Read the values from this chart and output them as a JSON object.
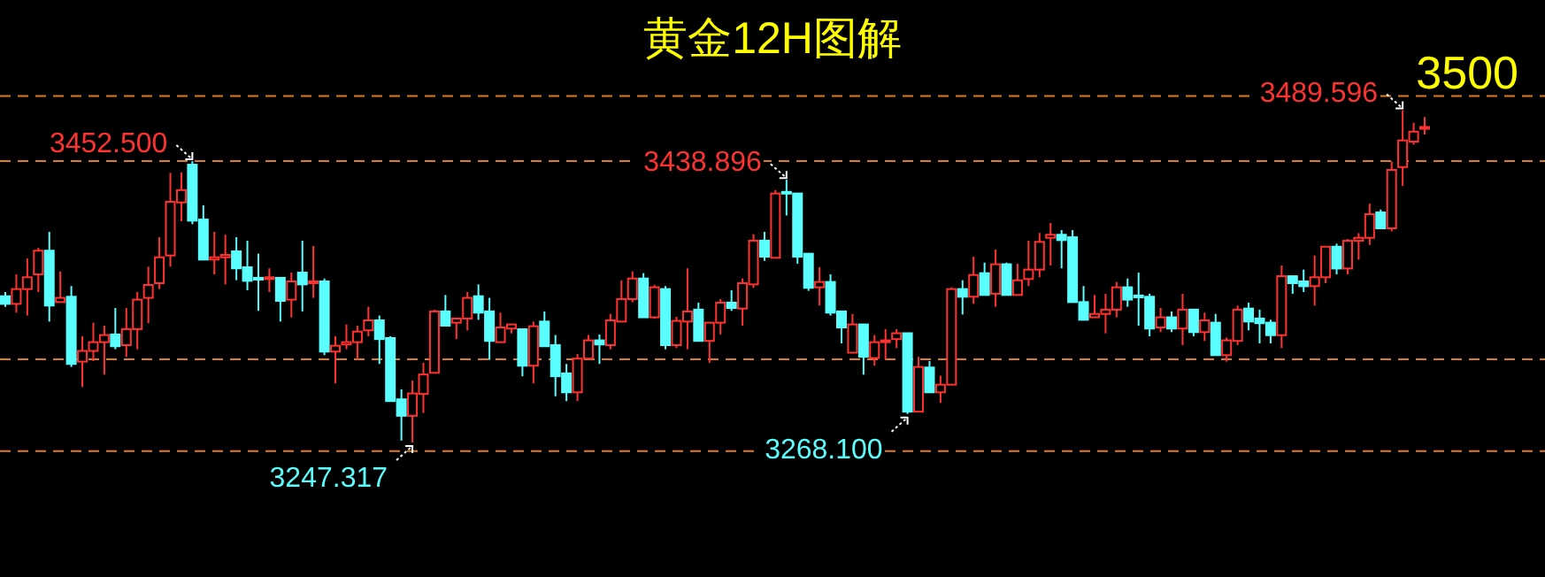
{
  "chart_data": {
    "type": "candlestick",
    "title": "黄金12H图解",
    "categories": [
      null,
      null,
      null,
      null,
      null,
      null,
      null,
      null,
      null,
      null,
      null,
      null,
      null,
      null,
      null,
      null,
      null,
      null,
      null,
      null,
      null,
      null,
      null,
      null,
      null,
      null,
      null,
      null,
      null,
      null,
      null,
      null,
      null,
      null,
      null,
      null,
      null,
      null,
      null,
      null,
      null,
      null,
      null,
      null,
      null,
      null,
      null,
      null,
      null,
      null,
      null,
      null,
      null,
      null,
      null,
      null,
      null,
      null,
      null,
      null,
      null,
      null,
      null,
      null,
      null,
      null,
      null,
      null,
      null,
      null,
      null,
      null,
      null,
      null,
      null,
      null,
      null,
      null,
      null,
      null,
      null,
      null,
      null,
      null,
      null,
      null,
      null,
      null,
      null,
      null,
      null,
      null,
      null,
      null,
      null,
      null,
      null,
      null,
      null,
      null,
      null,
      null,
      null,
      null,
      null,
      null,
      null,
      null,
      null,
      null,
      null,
      null,
      null,
      null,
      null,
      null,
      null,
      null,
      null,
      null,
      null,
      null,
      null,
      null,
      null,
      null,
      null,
      null,
      null,
      null
    ],
    "ohlc": [
      [
        3354.0,
        3357.0,
        3346.3,
        3348.4
      ],
      [
        3348.4,
        3369.9,
        3342.0,
        3359.2
      ],
      [
        3359.2,
        3381.6,
        3339.9,
        3367.8
      ],
      [
        3369.9,
        3389.3,
        3357.1,
        3387.2
      ],
      [
        3387.2,
        3400.9,
        3335.5,
        3347.2
      ],
      [
        3349.7,
        3372.1,
        3349.7,
        3352.8
      ],
      [
        3353.6,
        3361.4,
        3302.4,
        3304.6
      ],
      [
        3306.3,
        3324.8,
        3287.8,
        3314.1
      ],
      [
        3314.1,
        3334.7,
        3306.7,
        3320.5
      ],
      [
        3320.5,
        3332.5,
        3296.8,
        3325.7
      ],
      [
        3326.1,
        3345.4,
        3315.3,
        3317.5
      ],
      [
        3318.3,
        3345.4,
        3309.8,
        3330.0
      ],
      [
        3330.0,
        3357.1,
        3315.3,
        3351.5
      ],
      [
        3352.8,
        3375.5,
        3334.3,
        3362.2
      ],
      [
        3363.5,
        3397.0,
        3359.2,
        3382.4
      ],
      [
        3383.7,
        3443.9,
        3375.5,
        3422.8
      ],
      [
        3422.4,
        3444.3,
        3408.6,
        3431.4
      ],
      [
        3449.9,
        3452.5,
        3406.5,
        3409.1
      ],
      [
        3409.9,
        3420.3,
        3380.7,
        3380.7
      ],
      [
        3380.7,
        3400.9,
        3369.9,
        3382.4
      ],
      [
        3382.4,
        3398.8,
        3362.6,
        3384.1
      ],
      [
        3386.7,
        3397.0,
        3365.7,
        3374.3
      ],
      [
        3375.1,
        3394.5,
        3358.3,
        3365.2
      ],
      [
        3367.4,
        3385.0,
        3343.3,
        3366.5
      ],
      [
        3366.9,
        3374.3,
        3357.1,
        3367.8
      ],
      [
        3367.4,
        3367.4,
        3335.5,
        3350.6
      ],
      [
        3351.5,
        3371.2,
        3338.6,
        3364.8
      ],
      [
        3371.2,
        3394.5,
        3342.9,
        3362.6
      ],
      [
        3363.5,
        3390.6,
        3352.8,
        3364.8
      ],
      [
        3364.8,
        3366.9,
        3311.0,
        3313.6
      ],
      [
        3313.6,
        3324.8,
        3290.4,
        3317.9
      ],
      [
        3318.8,
        3333.4,
        3315.3,
        3320.5
      ],
      [
        3320.5,
        3332.5,
        3307.6,
        3328.2
      ],
      [
        3329.1,
        3346.3,
        3324.8,
        3336.4
      ],
      [
        3336.4,
        3339.9,
        3304.6,
        3322.7
      ],
      [
        3323.5,
        3324.8,
        3277.5,
        3277.5
      ],
      [
        3278.8,
        3286.1,
        3248.7,
        3266.8
      ],
      [
        3266.8,
        3292.5,
        3247.317,
        3283.1
      ],
      [
        3282.7,
        3305.4,
        3268.9,
        3296.9
      ],
      [
        3298.1,
        3344.2,
        3298.1,
        3342.9
      ],
      [
        3342.9,
        3354.9,
        3332.5,
        3332.5
      ],
      [
        3334.7,
        3337.7,
        3322.7,
        3337.7
      ],
      [
        3337.7,
        3357.1,
        3329.1,
        3352.8
      ],
      [
        3354.0,
        3362.6,
        3336.8,
        3342.0
      ],
      [
        3342.9,
        3352.8,
        3307.6,
        3321.4
      ],
      [
        3320.5,
        3342.0,
        3320.5,
        3331.2
      ],
      [
        3330.4,
        3333.4,
        3326.9,
        3333.4
      ],
      [
        3329.9,
        3329.9,
        3295.6,
        3303.3
      ],
      [
        3303.3,
        3335.5,
        3290.4,
        3332.1
      ],
      [
        3335.5,
        3342.9,
        3317.5,
        3317.5
      ],
      [
        3318.3,
        3325.7,
        3281.0,
        3295.6
      ],
      [
        3297.7,
        3304.6,
        3277.5,
        3283.9
      ],
      [
        3283.9,
        3311.9,
        3277.5,
        3308.5
      ],
      [
        3308.5,
        3325.7,
        3308.5,
        3321.8
      ],
      [
        3321.8,
        3326.1,
        3304.6,
        3318.8
      ],
      [
        3318.3,
        3341.1,
        3315.3,
        3336.4
      ],
      [
        3335.5,
        3365.6,
        3335.5,
        3351.9
      ],
      [
        3351.9,
        3372.1,
        3349.7,
        3366.9
      ],
      [
        3366.9,
        3370.8,
        3338.6,
        3338.6
      ],
      [
        3338.6,
        3362.2,
        3337.7,
        3360.5
      ],
      [
        3359.2,
        3361.4,
        3315.3,
        3318.3
      ],
      [
        3318.3,
        3339.0,
        3316.2,
        3336.0
      ],
      [
        3335.5,
        3374.3,
        3315.3,
        3342.9
      ],
      [
        3344.2,
        3349.3,
        3321.4,
        3321.4
      ],
      [
        3321.4,
        3334.7,
        3305.4,
        3334.7
      ],
      [
        3334.7,
        3351.9,
        3326.1,
        3349.3
      ],
      [
        3349.3,
        3358.3,
        3343.3,
        3345.4
      ],
      [
        3345.0,
        3366.9,
        3332.5,
        3363.5
      ],
      [
        3362.6,
        3399.2,
        3360.1,
        3394.5
      ],
      [
        3394.5,
        3400.9,
        3379.8,
        3382.8
      ],
      [
        3382.0,
        3431.4,
        3382.0,
        3428.9
      ],
      [
        3430.1,
        3438.896,
        3412.9,
        3428.9
      ],
      [
        3428.9,
        3428.9,
        3377.7,
        3382.8
      ],
      [
        3385.0,
        3385.0,
        3357.9,
        3360.1
      ],
      [
        3360.5,
        3375.1,
        3347.2,
        3364.4
      ],
      [
        3364.4,
        3369.9,
        3339.9,
        3342.0
      ],
      [
        3342.9,
        3342.9,
        3319.6,
        3331.2
      ],
      [
        3312.8,
        3341.1,
        3312.8,
        3333.4
      ],
      [
        3333.4,
        3333.4,
        3296.8,
        3309.8
      ],
      [
        3308.9,
        3325.7,
        3303.3,
        3320.5
      ],
      [
        3320.5,
        3330.0,
        3307.6,
        3321.8
      ],
      [
        3322.7,
        3330.0,
        3316.2,
        3327.0
      ],
      [
        3327.0,
        3327.0,
        3268.1,
        3269.8
      ],
      [
        3269.8,
        3309.8,
        3269.8,
        3302.4
      ],
      [
        3302.0,
        3306.7,
        3283.9,
        3283.9
      ],
      [
        3283.9,
        3296.0,
        3276.2,
        3289.5
      ],
      [
        3289.5,
        3360.5,
        3289.5,
        3359.2
      ],
      [
        3359.2,
        3365.6,
        3340.7,
        3353.6
      ],
      [
        3353.6,
        3382.8,
        3348.4,
        3369.5
      ],
      [
        3370.8,
        3378.5,
        3354.9,
        3354.9
      ],
      [
        3355.8,
        3388.0,
        3346.3,
        3377.3
      ],
      [
        3377.3,
        3378.5,
        3354.9,
        3354.9
      ],
      [
        3354.9,
        3377.7,
        3354.9,
        3365.6
      ],
      [
        3366.5,
        3394.5,
        3361.4,
        3373.4
      ],
      [
        3373.4,
        3400.1,
        3367.8,
        3393.6
      ],
      [
        3396.6,
        3407.4,
        3376.4,
        3398.8
      ],
      [
        3398.8,
        3402.2,
        3374.3,
        3394.9
      ],
      [
        3397.0,
        3402.2,
        3349.7,
        3349.7
      ],
      [
        3349.7,
        3361.4,
        3336.8,
        3336.8
      ],
      [
        3338.6,
        3354.9,
        3338.6,
        3341.1
      ],
      [
        3341.1,
        3355.8,
        3326.9,
        3344.2
      ],
      [
        3344.2,
        3364.4,
        3338.6,
        3360.5
      ],
      [
        3360.5,
        3366.9,
        3346.3,
        3351.5
      ],
      [
        3354.5,
        3371.2,
        3332.5,
        3353.2
      ],
      [
        3353.6,
        3355.8,
        3324.8,
        3330.4
      ],
      [
        3331.2,
        3345.4,
        3327.8,
        3338.6
      ],
      [
        3338.6,
        3342.9,
        3327.8,
        3330.4
      ],
      [
        3330.4,
        3355.8,
        3318.3,
        3344.2
      ],
      [
        3344.2,
        3344.2,
        3324.8,
        3327.8
      ],
      [
        3327.8,
        3342.0,
        3321.4,
        3336.4
      ],
      [
        3334.7,
        3341.1,
        3311.0,
        3311.0
      ],
      [
        3311.0,
        3323.9,
        3306.3,
        3321.8
      ],
      [
        3321.4,
        3347.2,
        3318.3,
        3344.2
      ],
      [
        3345.0,
        3349.3,
        3329.1,
        3335.5
      ],
      [
        3337.7,
        3344.2,
        3319.6,
        3334.3
      ],
      [
        3334.7,
        3336.8,
        3319.6,
        3325.6
      ],
      [
        3325.6,
        3376.4,
        3316.2,
        3368.6
      ],
      [
        3368.6,
        3368.6,
        3355.8,
        3363.5
      ],
      [
        3364.8,
        3373.4,
        3357.1,
        3361.3
      ],
      [
        3361.3,
        3383.7,
        3347.2,
        3367.8
      ],
      [
        3367.8,
        3390.1,
        3363.5,
        3390.1
      ],
      [
        3390.1,
        3392.3,
        3369.9,
        3374.2
      ],
      [
        3374.2,
        3395.7,
        3369.9,
        3394.4
      ],
      [
        3394.4,
        3400.0,
        3380.6,
        3396.6
      ],
      [
        3396.6,
        3421.5,
        3391.4,
        3413.8
      ],
      [
        3415.1,
        3417.2,
        3403.5,
        3403.5
      ],
      [
        3403.5,
        3452.2,
        3401.3,
        3446.1
      ],
      [
        3448.2,
        3489.596,
        3434.4,
        3467.6
      ],
      [
        3466.7,
        3480.5,
        3464.5,
        3474.0
      ],
      [
        3476.6,
        3484.7,
        3471.9,
        3477.4
      ]
    ],
    "colors": [
      "#5affff",
      "#ff3232",
      "#ff3232",
      "#ff3232",
      "#5affff",
      "#ff3232",
      "#5affff",
      "#ff3232",
      "#ff3232",
      "#ff3232",
      "#5affff",
      "#ff3232",
      "#ff3232",
      "#ff3232",
      "#ff3232",
      "#ff3232",
      "#ff3232",
      "#5affff",
      "#5affff",
      "#ff3232",
      "#ff3232",
      "#5affff",
      "#5affff",
      "#5affff",
      "#ff3232",
      "#5affff",
      "#ff3232",
      "#5affff",
      "#ff3232",
      "#5affff",
      "#ff3232",
      "#ff3232",
      "#ff3232",
      "#ff3232",
      "#5affff",
      "#5affff",
      "#5affff",
      "#ff3232",
      "#ff3232",
      "#ff3232",
      "#5affff",
      "#ff3232",
      "#ff3232",
      "#5affff",
      "#5affff",
      "#ff3232",
      "#ff3232",
      "#5affff",
      "#ff3232",
      "#5affff",
      "#5affff",
      "#5affff",
      "#ff3232",
      "#ff3232",
      "#5affff",
      "#ff3232",
      "#ff3232",
      "#ff3232",
      "#5affff",
      "#ff3232",
      "#5affff",
      "#ff3232",
      "#ff3232",
      "#5affff",
      "#ff3232",
      "#ff3232",
      "#5affff",
      "#ff3232",
      "#ff3232",
      "#5affff",
      "#ff3232",
      "#5affff",
      "#5affff",
      "#5affff",
      "#ff3232",
      "#5affff",
      "#5affff",
      "#ff3232",
      "#5affff",
      "#ff3232",
      "#ff3232",
      "#ff3232",
      "#5affff",
      "#ff3232",
      "#5affff",
      "#ff3232",
      "#ff3232",
      "#5affff",
      "#ff3232",
      "#5affff",
      "#ff3232",
      "#5affff",
      "#ff3232",
      "#ff3232",
      "#ff3232",
      "#ff3232",
      "#5affff",
      "#5affff",
      "#5affff",
      "#ff3232",
      "#ff3232",
      "#ff3232",
      "#5affff",
      "#5affff",
      "#5affff",
      "#ff3232",
      "#5affff",
      "#ff3232",
      "#5affff",
      "#ff3232",
      "#5affff",
      "#ff3232",
      "#ff3232",
      "#5affff",
      "#5affff",
      "#5affff",
      "#ff3232",
      "#5affff",
      "#5affff",
      "#ff3232",
      "#ff3232",
      "#5affff",
      "#ff3232",
      "#ff3232",
      "#ff3232",
      "#5affff",
      "#ff3232",
      "#ff3232",
      "#ff3232",
      "#ff3232"
    ],
    "ref_lines": [
      {
        "axis": "y",
        "value": 3500,
        "label": "3500",
        "color": "#e07b20",
        "line_style": "dashed"
      },
      {
        "axis": "y",
        "value": 3452.5,
        "color": "#e07b20",
        "line_style": "dashed"
      },
      {
        "axis": "y",
        "value": 3308,
        "color": "#e07b20",
        "line_style": "dashed"
      },
      {
        "axis": "y",
        "value": 3241,
        "color": "#e07b20",
        "line_style": "dashed"
      }
    ],
    "annotations": [
      "3452.500",
      "3438.896",
      "3489.596",
      "3247.317",
      "3268.100"
    ]
  }
}
